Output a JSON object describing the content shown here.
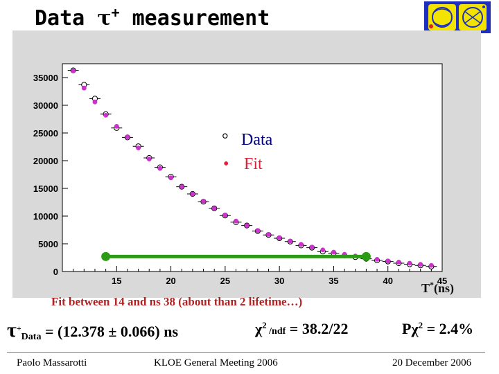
{
  "slide": {
    "title_prefix": "Data ",
    "title_tau": "τ",
    "title_tau_sup": "+",
    "title_suffix": " measurement",
    "logo_icon": "kloe-logo-icon"
  },
  "fit_caption": "Fit between 14 and  ns 38 (about than 2 lifetime…)",
  "result": {
    "tau": "τ",
    "tau_sup": "+",
    "tau_sub": "Data",
    "tau_value": " = (12.378 ± 0.066) ns",
    "chi": "χ",
    "chi_sup": "2",
    "chi_ndf": " /ndf",
    "chi_value": " = 38.2/22",
    "pchi_prefix": "Pχ",
    "pchi_sup": "2",
    "pchi_value": " = 2.4%"
  },
  "footer": {
    "author": "Paolo Massarotti",
    "meeting": "KLOE General Meeting  2006",
    "date": "20 December 2006"
  },
  "colors": {
    "fit": "#cc33cc",
    "data": "#000000",
    "range_bar": "#2e9b16",
    "frame_bg": "#d9d9d9",
    "caption": "#b22222"
  },
  "chart_data": {
    "type": "scatter",
    "title": "",
    "xlabel": "T",
    "xlabel_sup": "*",
    "xlabel_unit": "(ns)",
    "ylabel": "",
    "xlim": [
      10,
      45
    ],
    "ylim": [
      0,
      37500
    ],
    "x_ticks": [
      15,
      20,
      25,
      30,
      35,
      40,
      45
    ],
    "y_ticks": [
      0,
      5000,
      10000,
      15000,
      20000,
      25000,
      30000,
      35000
    ],
    "legend": {
      "placement": "center",
      "data_label": "Data",
      "fit_label": "Fit",
      "data_marker": "°",
      "fit_marker": "•"
    },
    "series": [
      {
        "name": "Data",
        "marker": "open-circle",
        "x": [
          11,
          12,
          13,
          14,
          15,
          16,
          17,
          18,
          19,
          20,
          21,
          22,
          23,
          24,
          25,
          26,
          27,
          28,
          29,
          30,
          31,
          32,
          33,
          34,
          35,
          36,
          37,
          38,
          39,
          40,
          41,
          42,
          43,
          44
        ],
        "y": [
          36300,
          33700,
          31200,
          28400,
          25900,
          24200,
          22600,
          20500,
          18800,
          17100,
          15300,
          14000,
          12600,
          11400,
          10100,
          8900,
          8300,
          7300,
          6600,
          6000,
          5400,
          4700,
          4300,
          3600,
          3300,
          2900,
          2600,
          2300,
          2000,
          1800,
          1500,
          1300,
          1100,
          900
        ]
      },
      {
        "name": "Fit",
        "marker": "filled-circle",
        "x": [
          11,
          12,
          13,
          14,
          15,
          16,
          17,
          18,
          19,
          20,
          21,
          22,
          23,
          24,
          25,
          26,
          27,
          28,
          29,
          30,
          31,
          32,
          33,
          34,
          35,
          36,
          37,
          38,
          39,
          40,
          41,
          42,
          43,
          44
        ],
        "y": [
          36200,
          33100,
          30600,
          28200,
          26200,
          24300,
          22300,
          20300,
          18600,
          16900,
          15300,
          14000,
          12700,
          11400,
          10200,
          9100,
          8300,
          7400,
          6700,
          6100,
          5500,
          4900,
          4400,
          3900,
          3500,
          3100,
          2800,
          2500,
          2200,
          1900,
          1700,
          1500,
          1300,
          1100
        ]
      }
    ],
    "fit_range": {
      "x": [
        14,
        38
      ],
      "y": 2700
    }
  }
}
